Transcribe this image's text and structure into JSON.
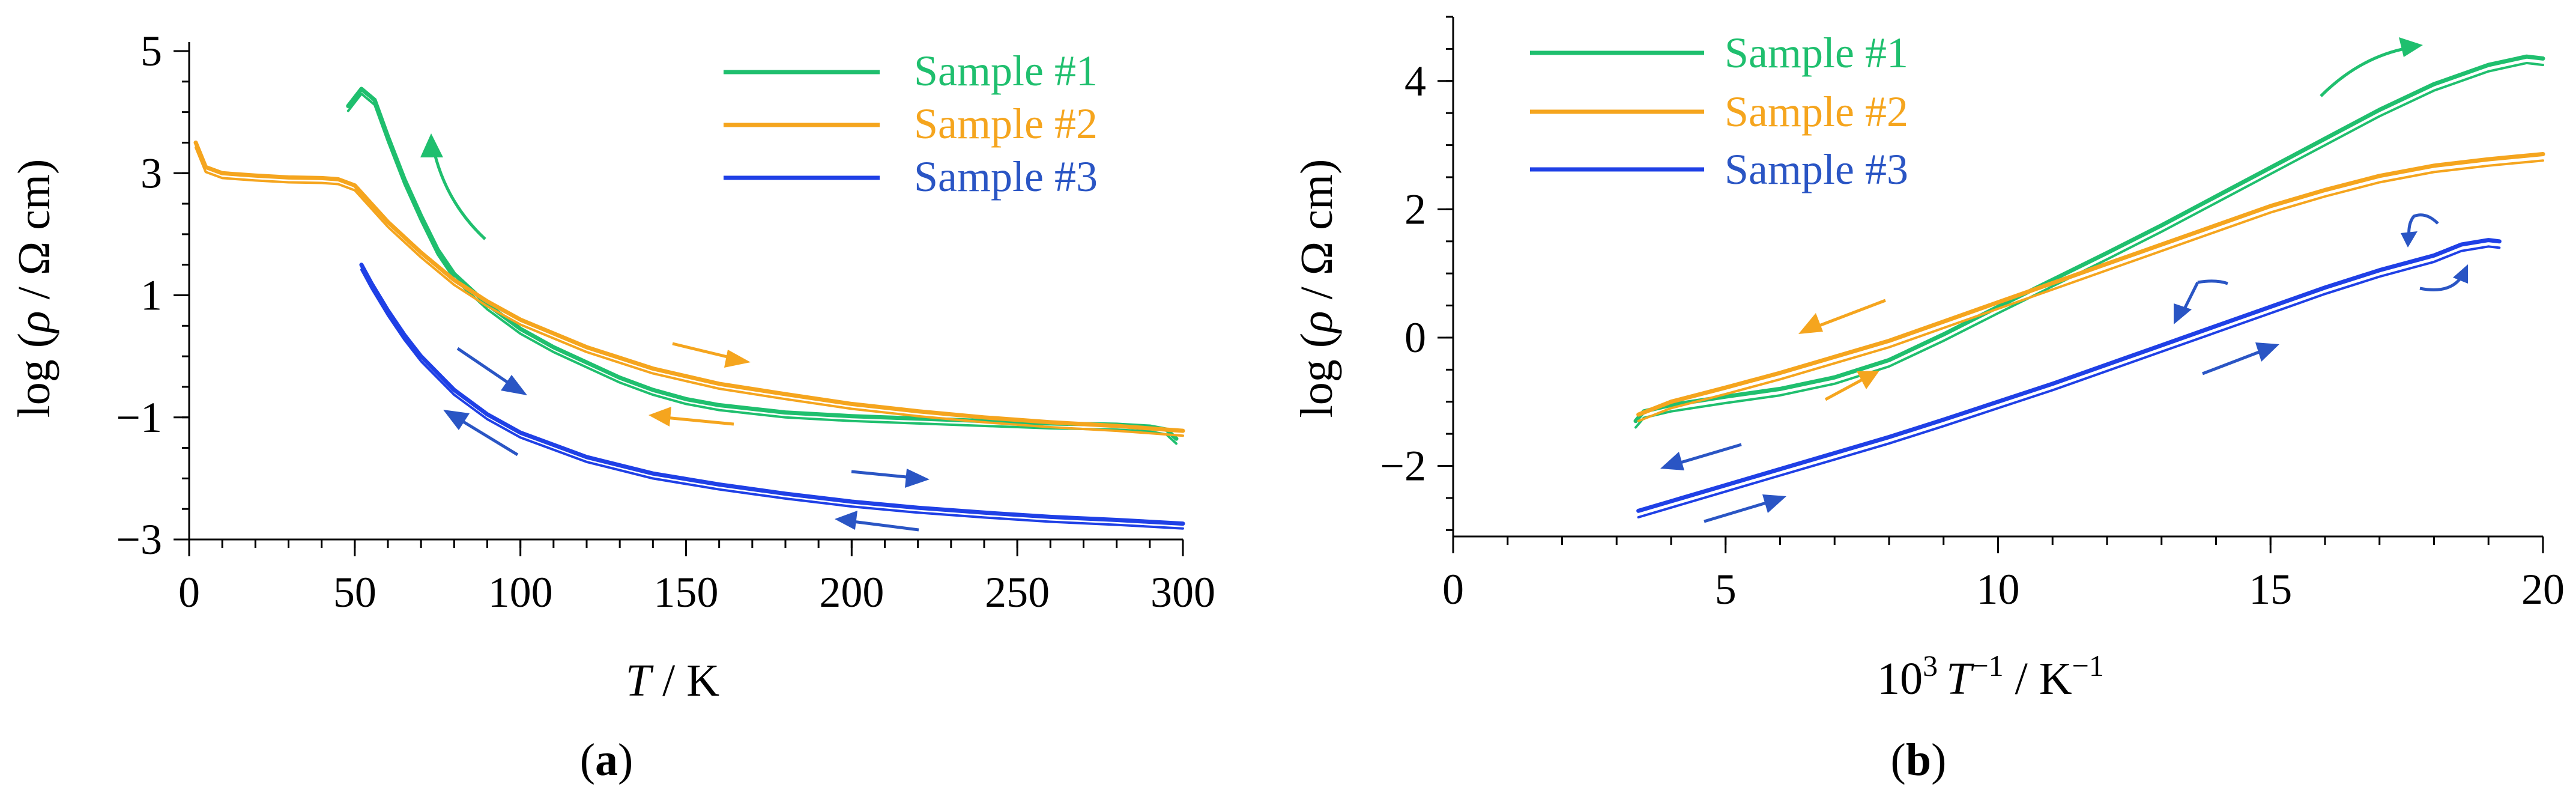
{
  "chart_data": [
    {
      "type": "line",
      "panel_label": "a",
      "xlabel_italic": "T",
      "xlabel_rest": " / K",
      "ylabel_pre": "log (",
      "ylabel_rho": "ρ",
      "ylabel_post": " / Ω cm)",
      "xlim": [
        0,
        300
      ],
      "ylim": [
        -3,
        5
      ],
      "xticks": [
        0,
        50,
        100,
        150,
        200,
        250,
        300
      ],
      "xtick_labels": [
        "0",
        "50",
        "100",
        "150",
        "200",
        "250",
        "300"
      ],
      "yticks": [
        -3,
        -1,
        1,
        3,
        5
      ],
      "ytick_labels": [
        "−3",
        "−1",
        "1",
        "3",
        "5"
      ],
      "legend_position": "top-right",
      "series": [
        {
          "name": "Sample #1",
          "color": "#1fbf6e",
          "x": [
            48,
            52,
            56,
            60,
            65,
            70,
            75,
            80,
            90,
            100,
            110,
            120,
            130,
            140,
            150,
            160,
            180,
            200,
            220,
            240,
            260,
            280,
            290,
            295,
            298
          ],
          "y": [
            4.1,
            4.38,
            4.2,
            3.6,
            2.9,
            2.3,
            1.75,
            1.35,
            0.85,
            0.45,
            0.15,
            -0.1,
            -0.35,
            -0.55,
            -0.7,
            -0.8,
            -0.92,
            -0.98,
            -1.02,
            -1.06,
            -1.1,
            -1.12,
            -1.15,
            -1.2,
            -1.35
          ]
        },
        {
          "name": "Sample #2",
          "color": "#f5a51e",
          "x": [
            2,
            5,
            10,
            20,
            30,
            40,
            45,
            50,
            55,
            60,
            70,
            80,
            90,
            100,
            120,
            140,
            160,
            180,
            200,
            220,
            240,
            260,
            280,
            300
          ],
          "y": [
            3.5,
            3.1,
            3.0,
            2.96,
            2.93,
            2.92,
            2.9,
            2.8,
            2.5,
            2.2,
            1.7,
            1.25,
            0.9,
            0.6,
            0.15,
            -0.2,
            -0.45,
            -0.62,
            -0.78,
            -0.9,
            -1.0,
            -1.08,
            -1.14,
            -1.22
          ]
        },
        {
          "name": "Sample #3",
          "color": "#1f40e6",
          "x": [
            52,
            55,
            60,
            65,
            70,
            80,
            90,
            100,
            120,
            140,
            160,
            180,
            200,
            220,
            240,
            260,
            280,
            300
          ],
          "y": [
            1.5,
            1.2,
            0.75,
            0.35,
            0.0,
            -0.55,
            -0.95,
            -1.25,
            -1.65,
            -1.92,
            -2.1,
            -2.25,
            -2.38,
            -2.48,
            -2.56,
            -2.63,
            -2.68,
            -2.74
          ]
        }
      ]
    },
    {
      "type": "line",
      "panel_label": "b",
      "xlabel_pre": "10",
      "xlabel_sup1": "3",
      "xlabel_italic": "T",
      "xlabel_sup2": "−1",
      "xlabel_mid": " / K",
      "xlabel_sup3": "−1",
      "ylabel_pre": "log (",
      "ylabel_rho": "ρ",
      "ylabel_post": " / Ω cm)",
      "xlim": [
        0,
        20
      ],
      "ylim": [
        -3.1,
        5
      ],
      "xticks": [
        0,
        5,
        10,
        15,
        20
      ],
      "xtick_labels": [
        "0",
        "5",
        "10",
        "15",
        "20"
      ],
      "yticks": [
        -2,
        0,
        2,
        4
      ],
      "ytick_labels": [
        "−2",
        "0",
        "2",
        "4"
      ],
      "legend_position": "top-left",
      "series": [
        {
          "name": "Sample #1",
          "color": "#1fbf6e",
          "x": [
            3.35,
            3.5,
            4.0,
            5.0,
            6.0,
            7.0,
            8.0,
            9.0,
            10.0,
            11.0,
            12.0,
            13.0,
            14.0,
            15.0,
            16.0,
            17.0,
            18.0,
            19.0,
            19.7,
            20.0
          ],
          "y": [
            -1.3,
            -1.15,
            -1.05,
            -0.92,
            -0.8,
            -0.62,
            -0.35,
            0.05,
            0.48,
            0.9,
            1.32,
            1.75,
            2.2,
            2.65,
            3.1,
            3.55,
            3.95,
            4.25,
            4.38,
            4.35
          ]
        },
        {
          "name": "Sample #2",
          "color": "#f5a51e",
          "x": [
            3.4,
            4.0,
            5.0,
            6.0,
            7.0,
            8.0,
            9.0,
            10.0,
            11.0,
            12.0,
            13.0,
            14.0,
            15.0,
            16.0,
            17.0,
            18.0,
            19.0,
            20.0
          ],
          "y": [
            -1.2,
            -1.0,
            -0.78,
            -0.55,
            -0.3,
            -0.05,
            0.25,
            0.55,
            0.85,
            1.15,
            1.45,
            1.75,
            2.05,
            2.3,
            2.52,
            2.68,
            2.78,
            2.86
          ]
        },
        {
          "name": "Sample #3",
          "color": "#1f40e6",
          "x": [
            3.4,
            4.0,
            5.0,
            6.0,
            7.0,
            8.0,
            9.0,
            10.0,
            11.0,
            12.0,
            13.0,
            14.0,
            15.0,
            16.0,
            17.0,
            18.0,
            18.5,
            19.0,
            19.2
          ],
          "y": [
            -2.7,
            -2.55,
            -2.3,
            -2.05,
            -1.8,
            -1.55,
            -1.28,
            -1.0,
            -0.72,
            -0.42,
            -0.12,
            0.18,
            0.48,
            0.78,
            1.05,
            1.28,
            1.45,
            1.52,
            1.5
          ]
        }
      ]
    }
  ]
}
